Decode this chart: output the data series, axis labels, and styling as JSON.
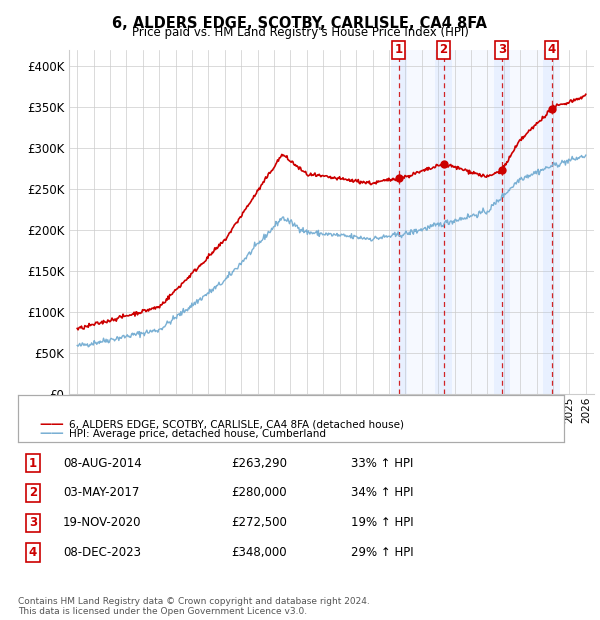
{
  "title_line1": "6, ALDERS EDGE, SCOTBY, CARLISLE, CA4 8FA",
  "title_line2": "Price paid vs. HM Land Registry's House Price Index (HPI)",
  "xlim": [
    1994.5,
    2026.5
  ],
  "ylim": [
    0,
    420000
  ],
  "yticks": [
    0,
    50000,
    100000,
    150000,
    200000,
    250000,
    300000,
    350000,
    400000
  ],
  "ytick_labels": [
    "£0",
    "£50K",
    "£100K",
    "£150K",
    "£200K",
    "£250K",
    "£300K",
    "£350K",
    "£400K"
  ],
  "sale_color": "#cc0000",
  "hpi_color": "#7ab0d4",
  "sale_label": "6, ALDERS EDGE, SCOTBY, CARLISLE, CA4 8FA (detached house)",
  "hpi_label": "HPI: Average price, detached house, Cumberland",
  "transactions": [
    {
      "num": 1,
      "date": "08-AUG-2014",
      "price": 263290,
      "pct": "33% ↑ HPI",
      "x": 2014.6
    },
    {
      "num": 2,
      "date": "03-MAY-2017",
      "price": 280000,
      "pct": "34% ↑ HPI",
      "x": 2017.33
    },
    {
      "num": 3,
      "date": "19-NOV-2020",
      "price": 272500,
      "pct": "19% ↑ HPI",
      "x": 2020.88
    },
    {
      "num": 4,
      "date": "08-DEC-2023",
      "price": 348000,
      "pct": "29% ↑ HPI",
      "x": 2023.92
    }
  ],
  "table_rows": [
    [
      "1",
      "08-AUG-2014",
      "£263,290",
      "33% ↑ HPI"
    ],
    [
      "2",
      "03-MAY-2017",
      "£280,000",
      "34% ↑ HPI"
    ],
    [
      "3",
      "19-NOV-2020",
      "£272,500",
      "19% ↑ HPI"
    ],
    [
      "4",
      "08-DEC-2023",
      "£348,000",
      "29% ↑ HPI"
    ]
  ],
  "footer_line1": "Contains HM Land Registry data © Crown copyright and database right 2024.",
  "footer_line2": "This data is licensed under the Open Government Licence v3.0."
}
